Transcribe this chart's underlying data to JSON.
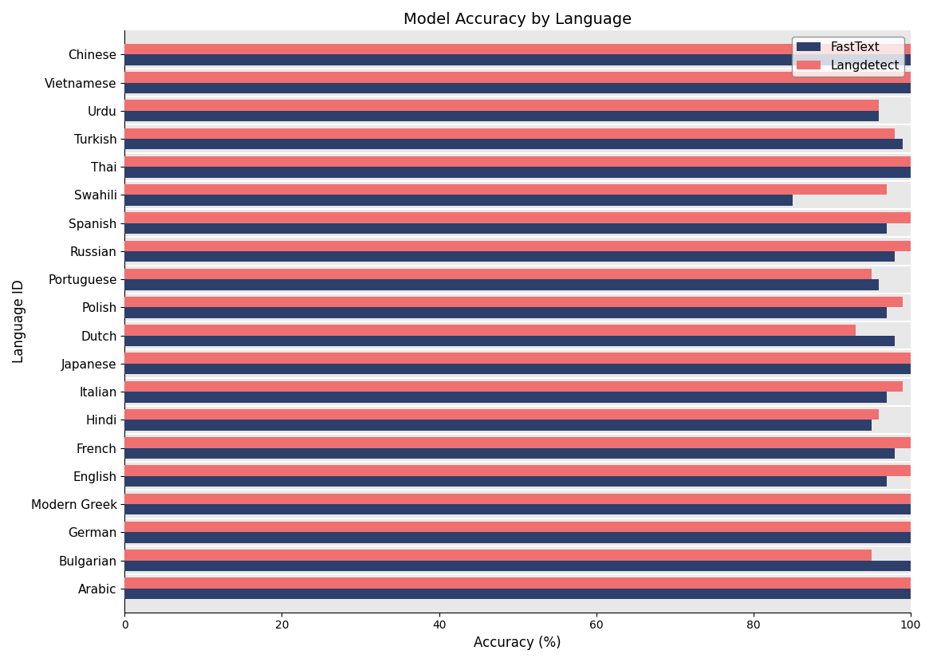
{
  "title": "Model Accuracy by Language",
  "xlabel": "Accuracy (%)",
  "ylabel": "Language ID",
  "languages": [
    "Chinese",
    "Vietnamese",
    "Urdu",
    "Turkish",
    "Thai",
    "Swahili",
    "Spanish",
    "Russian",
    "Portuguese",
    "Polish",
    "Dutch",
    "Japanese",
    "Italian",
    "Hindi",
    "French",
    "English",
    "Modern Greek",
    "German",
    "Bulgarian",
    "Arabic"
  ],
  "fasttext": [
    100,
    100,
    96,
    99,
    100,
    85,
    97,
    98,
    96,
    97,
    98,
    100,
    97,
    95,
    98,
    97,
    100,
    100,
    100,
    100
  ],
  "langdetect": [
    100,
    100,
    96,
    98,
    100,
    97,
    100,
    100,
    95,
    99,
    93,
    100,
    99,
    96,
    100,
    100,
    100,
    100,
    95,
    100
  ],
  "fasttext_color": "#2d3f6b",
  "langdetect_color": "#f07070",
  "xlim": [
    0,
    100
  ],
  "figsize": [
    11.7,
    8.3
  ],
  "dpi": 100,
  "legend_labels": [
    "FastText",
    "Langdetect"
  ],
  "bar_height": 0.38,
  "title_fontsize": 14,
  "axis_fontsize": 12,
  "tick_fontsize": 11,
  "facecolor": "#e8e8e8",
  "bg_color": "white"
}
